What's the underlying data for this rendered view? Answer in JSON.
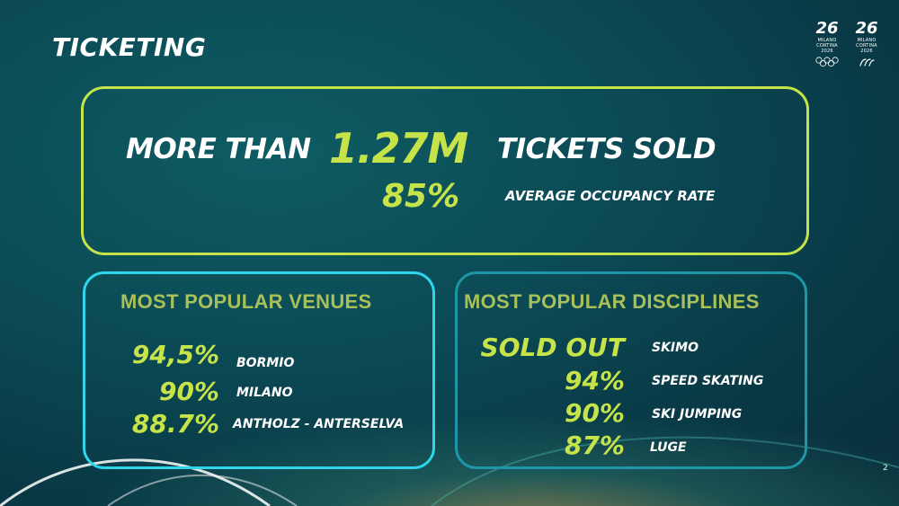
{
  "slide": {
    "title": "TICKETING",
    "page_number": "2"
  },
  "logos": [
    {
      "mark": "26",
      "line1": "MILANO CORTINA",
      "line2": "2026",
      "icon": "olympic-rings-icon"
    },
    {
      "mark": "26",
      "line1": "MILANO CORTINA",
      "line2": "2026",
      "icon": "paralympic-agitos-icon"
    }
  ],
  "headline": {
    "prefix": "MORE THAN",
    "value": "1.27M",
    "suffix": "TICKETS SOLD",
    "occupancy_value": "85%",
    "occupancy_label": "AVERAGE OCCUPANCY RATE"
  },
  "venues": {
    "title": "MOST POPULAR VENUES",
    "rows": [
      {
        "value": "94,5%",
        "label": "BORMIO"
      },
      {
        "value": "90%",
        "label": "MILANO"
      },
      {
        "value": "88.7%",
        "label": "ANTHOLZ - ANTERSELVA"
      }
    ]
  },
  "disciplines": {
    "title": "MOST POPULAR DISCIPLINES",
    "rows": [
      {
        "value": "SOLD OUT",
        "label": "SKIMO"
      },
      {
        "value": "94%",
        "label": "SPEED SKATING"
      },
      {
        "value": "90%",
        "label": "SKI JUMPING"
      },
      {
        "value": "87%",
        "label": "LUGE"
      }
    ]
  },
  "colors": {
    "accent": "#c6e34a",
    "venues_border": "#30d5ea",
    "disciplines_border": "#1e96a8",
    "background": "#0b4a55"
  }
}
